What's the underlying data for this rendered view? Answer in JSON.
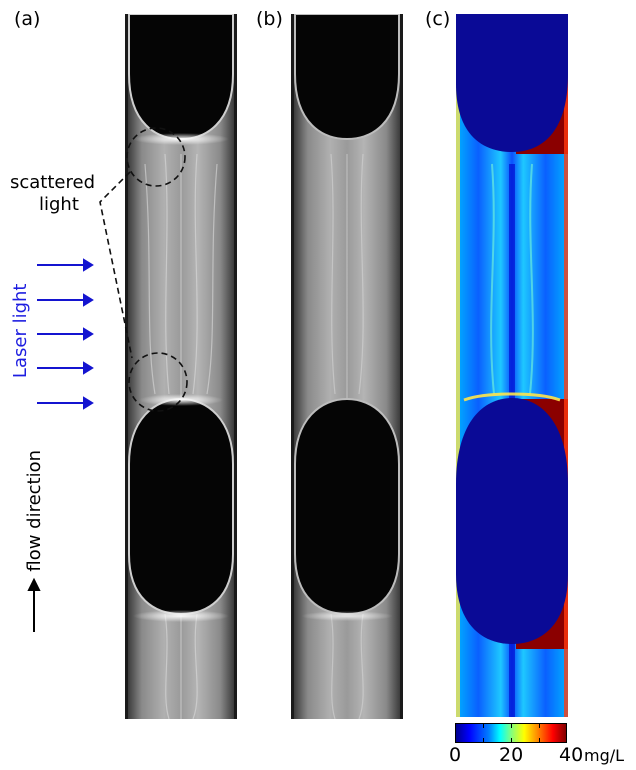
{
  "panel_labels": {
    "a": "(a)",
    "b": "(b)",
    "c": "(c)"
  },
  "annotations": {
    "scattered_line1": "scattered",
    "scattered_line2": "light",
    "laser_light": "Laser light",
    "flow_direction": "flow direction"
  },
  "colorbar": {
    "tick_0": "0",
    "tick_20": "20",
    "tick_40": "40",
    "unit": "mg/L",
    "min": 0,
    "max": 40,
    "colormap": "jet"
  },
  "colors": {
    "laser_arrow": "#1414d0",
    "laser_text": "#1d1de0",
    "blob": "#0a0a96",
    "high_red": "#8b0000"
  }
}
